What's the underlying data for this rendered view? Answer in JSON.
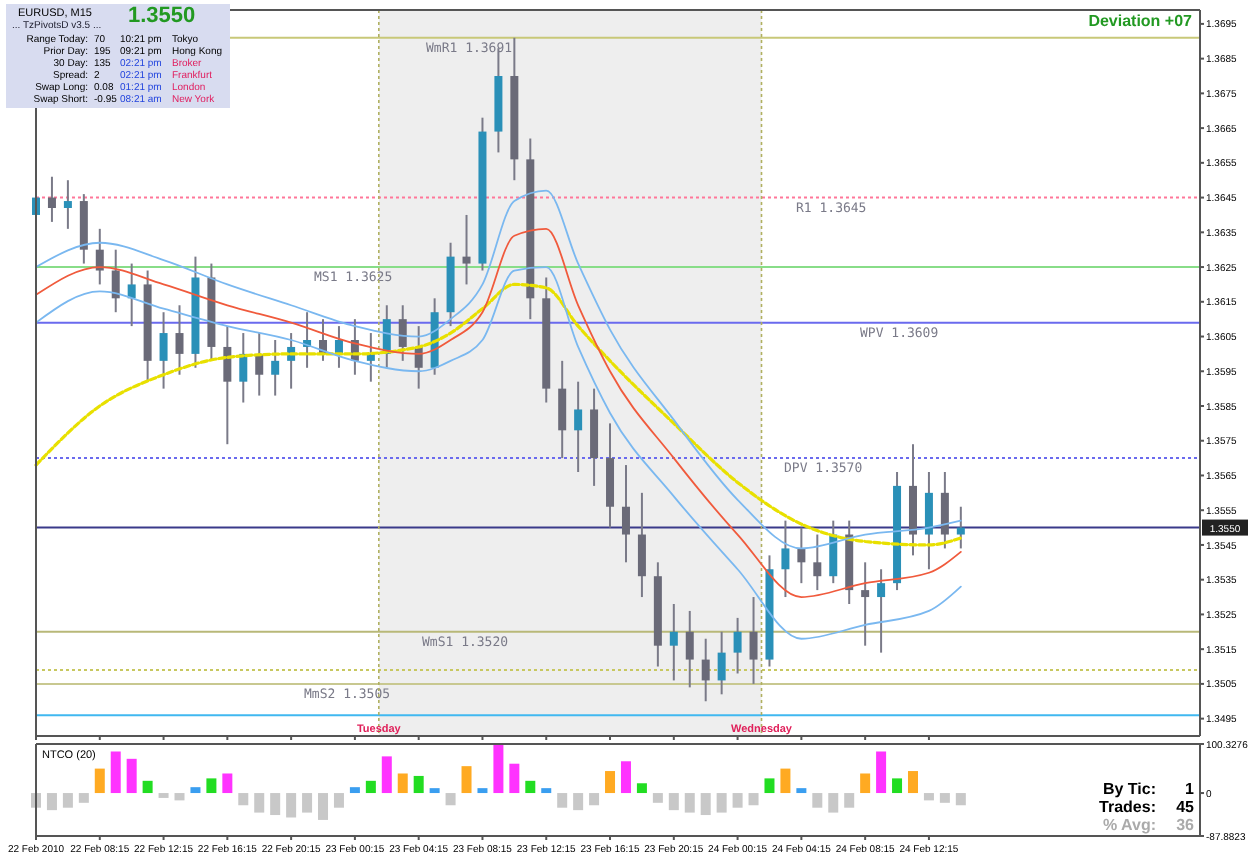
{
  "chart_data": [
    {
      "type": "candlestick",
      "x": [
        "2010-02-22T04:15",
        "2010-02-22T05:15",
        "2010-02-22T06:15",
        "2010-02-22T07:15",
        "2010-02-22T08:15",
        "2010-02-22T09:15",
        "2010-02-22T10:15",
        "2010-02-22T11:15",
        "2010-02-22T12:15",
        "2010-02-22T13:15",
        "2010-02-22T14:15",
        "2010-02-22T15:15",
        "2010-02-22T16:15",
        "2010-02-22T17:15",
        "2010-02-22T18:15",
        "2010-02-22T19:15",
        "2010-02-22T20:15",
        "2010-02-22T21:15",
        "2010-02-22T22:15",
        "2010-02-22T23:15",
        "2010-02-23T00:15",
        "2010-02-23T01:15",
        "2010-02-23T02:15",
        "2010-02-23T03:15",
        "2010-02-23T04:15",
        "2010-02-23T05:15",
        "2010-02-23T06:15",
        "2010-02-23T07:15",
        "2010-02-23T08:15",
        "2010-02-23T09:15",
        "2010-02-23T10:15",
        "2010-02-23T11:15",
        "2010-02-23T12:15",
        "2010-02-23T13:15",
        "2010-02-23T14:15",
        "2010-02-23T15:15",
        "2010-02-23T16:15",
        "2010-02-23T17:15",
        "2010-02-23T18:15",
        "2010-02-23T19:15",
        "2010-02-23T20:15",
        "2010-02-23T21:15",
        "2010-02-23T22:15",
        "2010-02-23T23:15",
        "2010-02-24T00:15",
        "2010-02-24T01:15",
        "2010-02-24T02:15",
        "2010-02-24T03:15",
        "2010-02-24T04:15",
        "2010-02-24T05:15",
        "2010-02-24T06:15",
        "2010-02-24T07:15",
        "2010-02-24T08:15",
        "2010-02-24T09:15",
        "2010-02-24T10:15",
        "2010-02-24T11:15",
        "2010-02-24T12:15",
        "2010-02-24T13:15",
        "2010-02-24T14:15"
      ],
      "ohlc": [
        [
          1.364,
          1.3652,
          1.3634,
          1.3645
        ],
        [
          1.3645,
          1.3651,
          1.3638,
          1.3642
        ],
        [
          1.3642,
          1.365,
          1.3636,
          1.3644
        ],
        [
          1.3644,
          1.3646,
          1.3626,
          1.363
        ],
        [
          1.363,
          1.3636,
          1.362,
          1.3624
        ],
        [
          1.3624,
          1.363,
          1.3612,
          1.3616
        ],
        [
          1.3616,
          1.3626,
          1.3608,
          1.362
        ],
        [
          1.362,
          1.3624,
          1.3592,
          1.3598
        ],
        [
          1.3598,
          1.3612,
          1.359,
          1.3606
        ],
        [
          1.3606,
          1.3614,
          1.3594,
          1.36
        ],
        [
          1.36,
          1.3628,
          1.3596,
          1.3622
        ],
        [
          1.3622,
          1.3626,
          1.3598,
          1.3602
        ],
        [
          1.3602,
          1.3608,
          1.3574,
          1.3592
        ],
        [
          1.3592,
          1.3606,
          1.3586,
          1.36
        ],
        [
          1.36,
          1.3606,
          1.3588,
          1.3594
        ],
        [
          1.3594,
          1.3604,
          1.3588,
          1.3598
        ],
        [
          1.3598,
          1.3606,
          1.359,
          1.3602
        ],
        [
          1.3602,
          1.3612,
          1.3596,
          1.3604
        ],
        [
          1.3604,
          1.361,
          1.3598,
          1.36
        ],
        [
          1.36,
          1.3608,
          1.3596,
          1.3604
        ],
        [
          1.3604,
          1.361,
          1.3594,
          1.3598
        ],
        [
          1.3598,
          1.3606,
          1.3592,
          1.36
        ],
        [
          1.36,
          1.3614,
          1.3596,
          1.361
        ],
        [
          1.361,
          1.3614,
          1.3598,
          1.3602
        ],
        [
          1.3602,
          1.3608,
          1.359,
          1.3596
        ],
        [
          1.3596,
          1.3616,
          1.3594,
          1.3612
        ],
        [
          1.3612,
          1.3632,
          1.3608,
          1.3628
        ],
        [
          1.3628,
          1.364,
          1.362,
          1.3626
        ],
        [
          1.3626,
          1.3668,
          1.3624,
          1.3664
        ],
        [
          1.3664,
          1.3688,
          1.3658,
          1.368
        ],
        [
          1.368,
          1.3691,
          1.365,
          1.3656
        ],
        [
          1.3656,
          1.3662,
          1.361,
          1.3616
        ],
        [
          1.3616,
          1.3622,
          1.3586,
          1.359
        ],
        [
          1.359,
          1.3598,
          1.357,
          1.3578
        ],
        [
          1.3578,
          1.3592,
          1.3566,
          1.3584
        ],
        [
          1.3584,
          1.359,
          1.3562,
          1.357
        ],
        [
          1.357,
          1.358,
          1.355,
          1.3556
        ],
        [
          1.3556,
          1.3568,
          1.354,
          1.3548
        ],
        [
          1.3548,
          1.356,
          1.353,
          1.3536
        ],
        [
          1.3536,
          1.354,
          1.351,
          1.3516
        ],
        [
          1.3516,
          1.3528,
          1.3506,
          1.352
        ],
        [
          1.352,
          1.3526,
          1.3504,
          1.3512
        ],
        [
          1.3512,
          1.3518,
          1.35,
          1.3506
        ],
        [
          1.3506,
          1.352,
          1.3502,
          1.3514
        ],
        [
          1.3514,
          1.3524,
          1.3508,
          1.352
        ],
        [
          1.352,
          1.353,
          1.3505,
          1.3512
        ],
        [
          1.3512,
          1.3542,
          1.351,
          1.3538
        ],
        [
          1.3538,
          1.3552,
          1.353,
          1.3544
        ],
        [
          1.3544,
          1.355,
          1.3534,
          1.354
        ],
        [
          1.354,
          1.3548,
          1.3532,
          1.3536
        ],
        [
          1.3536,
          1.3552,
          1.3534,
          1.3548
        ],
        [
          1.3548,
          1.3552,
          1.3528,
          1.3532
        ],
        [
          1.3532,
          1.354,
          1.3516,
          1.353
        ],
        [
          1.353,
          1.3538,
          1.3514,
          1.3534
        ],
        [
          1.3534,
          1.3566,
          1.3532,
          1.3562
        ],
        [
          1.3562,
          1.3574,
          1.3542,
          1.3548
        ],
        [
          1.3548,
          1.3566,
          1.3538,
          1.356
        ],
        [
          1.356,
          1.3566,
          1.3544,
          1.3548
        ],
        [
          1.3548,
          1.3556,
          1.3544,
          1.355
        ]
      ],
      "series": [
        {
          "type": "line",
          "color": "#e8e000",
          "line_style": "dashed",
          "x": [
            "2010-02-22T04:15",
            "2010-02-22T08:15",
            "2010-02-22T12:15",
            "2010-02-22T16:15",
            "2010-02-22T20:15",
            "2010-02-23T00:15",
            "2010-02-23T04:15",
            "2010-02-23T06:15",
            "2010-02-23T08:15",
            "2010-02-23T10:15",
            "2010-02-23T12:15",
            "2010-02-23T14:15",
            "2010-02-23T16:15",
            "2010-02-23T20:15",
            "2010-02-24T00:15",
            "2010-02-24T04:15",
            "2010-02-24T08:15",
            "2010-02-24T12:15",
            "2010-02-24T14:15"
          ],
          "values": [
            1.3568,
            1.3585,
            1.3594,
            1.3599,
            1.36,
            1.36,
            1.3602,
            1.3606,
            1.3613,
            1.362,
            1.3619,
            1.3608,
            1.3598,
            1.358,
            1.3563,
            1.3551,
            1.3546,
            1.3545,
            1.3547
          ]
        },
        {
          "type": "line",
          "color": "#f05a3c",
          "line_style": "solid",
          "x": [
            "2010-02-22T04:15",
            "2010-02-22T08:15",
            "2010-02-22T12:15",
            "2010-02-22T16:15",
            "2010-02-22T20:15",
            "2010-02-23T00:15",
            "2010-02-23T04:15",
            "2010-02-23T06:15",
            "2010-02-23T08:15",
            "2010-02-23T10:15",
            "2010-02-23T12:15",
            "2010-02-23T14:15",
            "2010-02-23T16:15",
            "2010-02-23T20:15",
            "2010-02-24T00:15",
            "2010-02-24T04:15",
            "2010-02-24T08:15",
            "2010-02-24T12:15",
            "2010-02-24T14:15"
          ],
          "values": [
            1.3617,
            1.3625,
            1.362,
            1.3614,
            1.3609,
            1.3603,
            1.36,
            1.3604,
            1.3612,
            1.3634,
            1.3636,
            1.3614,
            1.3595,
            1.357,
            1.3548,
            1.353,
            1.3534,
            1.3537,
            1.3543
          ]
        },
        {
          "type": "line",
          "color": "#7ab8f0",
          "line_style": "solid",
          "x": [
            "2010-02-22T04:15",
            "2010-02-22T08:15",
            "2010-02-22T12:15",
            "2010-02-22T16:15",
            "2010-02-22T20:15",
            "2010-02-23T00:15",
            "2010-02-23T04:15",
            "2010-02-23T06:15",
            "2010-02-23T08:15",
            "2010-02-23T10:15",
            "2010-02-23T12:15",
            "2010-02-23T14:15",
            "2010-02-23T16:15",
            "2010-02-23T20:15",
            "2010-02-24T00:15",
            "2010-02-24T04:15",
            "2010-02-24T08:15",
            "2010-02-24T12:15",
            "2010-02-24T14:15"
          ],
          "values": [
            1.3625,
            1.3632,
            1.3627,
            1.362,
            1.3614,
            1.3608,
            1.3605,
            1.361,
            1.362,
            1.3644,
            1.3647,
            1.3626,
            1.3607,
            1.3581,
            1.3558,
            1.3544,
            1.3548,
            1.355,
            1.3552
          ]
        },
        {
          "type": "line",
          "color": "#7ab8f0",
          "line_style": "solid",
          "x": [
            "2010-02-22T04:15",
            "2010-02-22T08:15",
            "2010-02-22T12:15",
            "2010-02-22T16:15",
            "2010-02-22T20:15",
            "2010-02-23T00:15",
            "2010-02-23T04:15",
            "2010-02-23T06:15",
            "2010-02-23T08:15",
            "2010-02-23T10:15",
            "2010-02-23T12:15",
            "2010-02-23T14:15",
            "2010-02-23T16:15",
            "2010-02-23T20:15",
            "2010-02-24T00:15",
            "2010-02-24T04:15",
            "2010-02-24T08:15",
            "2010-02-24T12:15",
            "2010-02-24T14:15"
          ],
          "values": [
            1.3609,
            1.3618,
            1.3613,
            1.3608,
            1.3604,
            1.3598,
            1.3595,
            1.3598,
            1.3604,
            1.3624,
            1.3625,
            1.3602,
            1.3583,
            1.3559,
            1.3538,
            1.3518,
            1.3522,
            1.3526,
            1.3533
          ]
        }
      ],
      "xlim": [
        "2010-02-22T04:15",
        "2010-02-25T05:15"
      ],
      "xticks": [
        {
          "value": "2010-02-22T04:15",
          "label": null
        },
        {
          "value": "2010-02-22T08:15",
          "label": null
        },
        {
          "value": "2010-02-22T12:15",
          "label": null
        },
        {
          "value": "2010-02-22T16:15",
          "label": null
        },
        {
          "value": "2010-02-22T20:15",
          "label": null
        },
        {
          "value": "2010-02-23T00:15",
          "label": null
        },
        {
          "value": "2010-02-23T04:15",
          "label": null
        },
        {
          "value": "2010-02-23T08:15",
          "label": null
        },
        {
          "value": "2010-02-23T12:15",
          "label": null
        },
        {
          "value": "2010-02-23T16:15",
          "label": null
        },
        {
          "value": "2010-02-23T20:15",
          "label": null
        },
        {
          "value": "2010-02-24T00:15",
          "label": null
        },
        {
          "value": "2010-02-24T04:15",
          "label": null
        },
        {
          "value": "2010-02-24T08:15",
          "label": null
        },
        {
          "value": "2010-02-24T12:15",
          "label": null
        }
      ],
      "ylim": [
        1.349,
        1.3699
      ],
      "yticks": [
        1.3495,
        1.3505,
        1.3515,
        1.3525,
        1.3535,
        1.3545,
        1.3555,
        1.3565,
        1.3575,
        1.3585,
        1.3595,
        1.3605,
        1.3615,
        1.3625,
        1.3635,
        1.3645,
        1.3655,
        1.3665,
        1.3675,
        1.3685,
        1.3695
      ],
      "tick_labels": "y",
      "ref_lines": [
        {
          "axis": "y",
          "value": 1.3691,
          "label": "WmR1   1.3691",
          "color": "#c8c878",
          "line_style": "solid"
        },
        {
          "axis": "y",
          "value": 1.3645,
          "label": "R1   1.3645",
          "color": "#ff7799",
          "line_style": "dotted"
        },
        {
          "axis": "y",
          "value": 1.3625,
          "label": "MS1   1.3625",
          "color": "#88dd88",
          "line_style": "solid"
        },
        {
          "axis": "y",
          "value": 1.3609,
          "label": "WPV   1.3609",
          "color": "#6a6aee",
          "line_style": "solid"
        },
        {
          "axis": "y",
          "value": 1.357,
          "label": "DPV   1.3570",
          "color": "#6a6aee",
          "line_style": "dotted"
        },
        {
          "axis": "y",
          "value": 1.355,
          "label": "1.3550",
          "color": "#3a3a8a",
          "line_style": "solid"
        },
        {
          "axis": "y",
          "value": 1.352,
          "label": "WmS1   1.3520",
          "color": "#b8b878",
          "line_style": "solid"
        },
        {
          "axis": "y",
          "value": 1.3509,
          "color": "#c8c860",
          "line_style": "dotted"
        },
        {
          "axis": "y",
          "value": 1.3505,
          "label": "MmS2   1.3505",
          "color": "#c8c890",
          "line_style": "solid"
        },
        {
          "axis": "y",
          "value": 1.3496,
          "color": "#40b8f0",
          "line_style": "solid"
        },
        {
          "axis": "x",
          "value": "2010-02-23T01:45",
          "label": "Tuesday",
          "color": "#b0b060",
          "line_style": "dotted"
        },
        {
          "axis": "x",
          "value": "2010-02-24T01:45",
          "label": "Wednesday",
          "color": "#b0b060",
          "line_style": "dotted"
        }
      ],
      "bands": [
        {
          "axis": "x",
          "from": "2010-02-23T01:45",
          "to": "2010-02-24T01:45",
          "color": "#eeeeee"
        }
      ],
      "annotations": [
        "EURUSD, M15",
        "... TzPivotsD v3.5 ...",
        "1.3550",
        "Range Today:",
        "70",
        "10:21 pm",
        "Tokyo",
        "Prior Day:",
        "195",
        "09:21 pm",
        "Hong Kong",
        "30 Day:",
        "135",
        "02:21 pm",
        "Broker",
        "Spread:",
        "2",
        "02:21 pm",
        "Frankfurt",
        "Swap Long:",
        "0.08",
        "01:21 pm",
        "London",
        "Swap Short:",
        "-0.95",
        "08:21 am",
        "New York",
        "Deviation +07"
      ]
    },
    {
      "type": "bar",
      "title": "NTCO (20)",
      "x": [
        "2010-02-22T04:15",
        "2010-02-22T05:15",
        "2010-02-22T06:15",
        "2010-02-22T07:15",
        "2010-02-22T08:15",
        "2010-02-22T09:15",
        "2010-02-22T10:15",
        "2010-02-22T11:15",
        "2010-02-22T12:15",
        "2010-02-22T13:15",
        "2010-02-22T14:15",
        "2010-02-22T15:15",
        "2010-02-22T16:15",
        "2010-02-22T17:15",
        "2010-02-22T18:15",
        "2010-02-22T19:15",
        "2010-02-22T20:15",
        "2010-02-22T21:15",
        "2010-02-22T22:15",
        "2010-02-22T23:15",
        "2010-02-23T00:15",
        "2010-02-23T01:15",
        "2010-02-23T02:15",
        "2010-02-23T03:15",
        "2010-02-23T04:15",
        "2010-02-23T05:15",
        "2010-02-23T06:15",
        "2010-02-23T07:15",
        "2010-02-23T08:15",
        "2010-02-23T09:15",
        "2010-02-23T10:15",
        "2010-02-23T11:15",
        "2010-02-23T12:15",
        "2010-02-23T13:15",
        "2010-02-23T14:15",
        "2010-02-23T15:15",
        "2010-02-23T16:15",
        "2010-02-23T17:15",
        "2010-02-23T18:15",
        "2010-02-23T19:15",
        "2010-02-23T20:15",
        "2010-02-23T21:15",
        "2010-02-23T22:15",
        "2010-02-23T23:15",
        "2010-02-24T00:15",
        "2010-02-24T01:15",
        "2010-02-24T02:15",
        "2010-02-24T03:15",
        "2010-02-24T04:15",
        "2010-02-24T05:15",
        "2010-02-24T06:15",
        "2010-02-24T07:15",
        "2010-02-24T08:15",
        "2010-02-24T09:15",
        "2010-02-24T10:15",
        "2010-02-24T11:15",
        "2010-02-24T12:15",
        "2010-02-24T13:15",
        "2010-02-24T14:15"
      ],
      "values": [
        -30,
        -35,
        -30,
        -20,
        50,
        85,
        70,
        25,
        -10,
        -15,
        12,
        30,
        40,
        -25,
        -40,
        -45,
        -50,
        -40,
        -55,
        -30,
        12,
        25,
        75,
        40,
        35,
        10,
        -25,
        55,
        10,
        100,
        60,
        25,
        10,
        -30,
        -35,
        -25,
        45,
        65,
        20,
        -20,
        -35,
        -40,
        -45,
        -40,
        -30,
        -25,
        30,
        50,
        10,
        -30,
        -40,
        -30,
        40,
        85,
        30,
        45,
        -15,
        -20,
        -25
      ],
      "colors": [
        "#c8c8c8",
        "#c8c8c8",
        "#c8c8c8",
        "#c8c8c8",
        "#ffaa22",
        "#ff33ff",
        "#ff33ff",
        "#22dd22",
        "#c8c8c8",
        "#c8c8c8",
        "#3a9ef0",
        "#22dd22",
        "#ff33ff",
        "#c8c8c8",
        "#c8c8c8",
        "#c8c8c8",
        "#c8c8c8",
        "#c8c8c8",
        "#c8c8c8",
        "#c8c8c8",
        "#3a9ef0",
        "#22dd22",
        "#ff33ff",
        "#ffaa22",
        "#22dd22",
        "#3a9ef0",
        "#c8c8c8",
        "#ffaa22",
        "#3a9ef0",
        "#ff33ff",
        "#ff33ff",
        "#22dd22",
        "#3a9ef0",
        "#c8c8c8",
        "#c8c8c8",
        "#c8c8c8",
        "#ffaa22",
        "#ff33ff",
        "#22dd22",
        "#c8c8c8",
        "#c8c8c8",
        "#c8c8c8",
        "#c8c8c8",
        "#c8c8c8",
        "#c8c8c8",
        "#c8c8c8",
        "#22dd22",
        "#ffaa22",
        "#3a9ef0",
        "#c8c8c8",
        "#c8c8c8",
        "#c8c8c8",
        "#ffaa22",
        "#ff33ff",
        "#22dd22",
        "#ffaa22",
        "#c8c8c8",
        "#c8c8c8",
        "#c8c8c8"
      ],
      "xlim": [
        "2010-02-22T04:15",
        "2010-02-25T05:15"
      ],
      "xticks": [
        {
          "value": "2010-02-22T04:15",
          "label": "22 Feb 2010"
        },
        {
          "value": "2010-02-22T08:15",
          "label": "22 Feb 08:15"
        },
        {
          "value": "2010-02-22T12:15",
          "label": "22 Feb 12:15"
        },
        {
          "value": "2010-02-22T16:15",
          "label": "22 Feb 16:15"
        },
        {
          "value": "2010-02-22T20:15",
          "label": "22 Feb 20:15"
        },
        {
          "value": "2010-02-23T00:15",
          "label": "23 Feb 00:15"
        },
        {
          "value": "2010-02-23T04:15",
          "label": "23 Feb 04:15"
        },
        {
          "value": "2010-02-23T08:15",
          "label": "23 Feb 08:15"
        },
        {
          "value": "2010-02-23T12:15",
          "label": "23 Feb 12:15"
        },
        {
          "value": "2010-02-23T16:15",
          "label": "23 Feb 16:15"
        },
        {
          "value": "2010-02-23T20:15",
          "label": "23 Feb 20:15"
        },
        {
          "value": "2010-02-24T00:15",
          "label": "24 Feb 00:15"
        },
        {
          "value": "2010-02-24T04:15",
          "label": "24 Feb 04:15"
        },
        {
          "value": "2010-02-24T08:15",
          "label": "24 Feb 08:15"
        },
        {
          "value": "2010-02-24T12:15",
          "label": "24 Feb 12:15"
        }
      ],
      "ylim": [
        -87.8823,
        100.3276
      ],
      "yticks": [
        -87.8823,
        0,
        100.3276
      ],
      "annotations": [
        "By Tic:",
        "1",
        "Trades:",
        "45",
        "% Avg:",
        "36"
      ]
    }
  ]
}
